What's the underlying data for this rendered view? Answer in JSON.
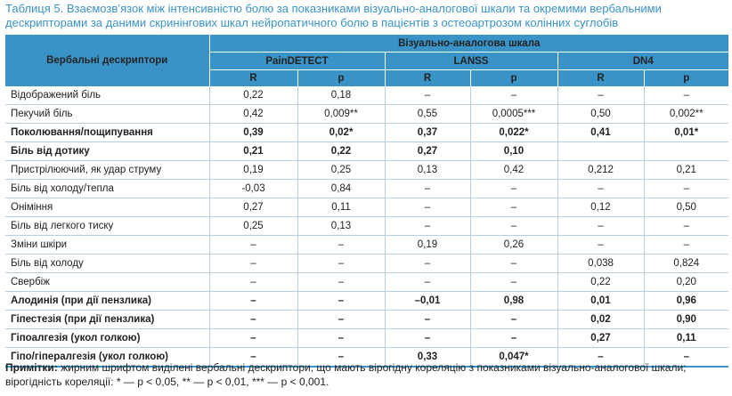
{
  "caption": {
    "line1": "Таблиця 5. Взаємозв’язок між інтенсивністю болю за показниками візуально-аналогової шкали та окремими вербальними",
    "line2": "дескрипторами за даними скринінгових шкал нейропатичного болю в пацієнтів з остеоартрозом колінних суглобів"
  },
  "table": {
    "descriptor_header": "Вербальні дескриптори",
    "scale_header": "Візуально-аналогова шкала",
    "groups": [
      "PainDETECT",
      "LANSS",
      "DN4"
    ],
    "subheaders": [
      "R",
      "p",
      "R",
      "p",
      "R",
      "p"
    ],
    "rows": [
      {
        "label": "Відображений біль",
        "bold": false,
        "cells": [
          "0,22",
          "0,18",
          "–",
          "–",
          "–",
          "–"
        ]
      },
      {
        "label": "Пекучий біль",
        "bold": false,
        "cells": [
          "0,42",
          "0,009**",
          "0,55",
          "0,0005***",
          "0,50",
          "0,002**"
        ]
      },
      {
        "label": "Поколювання/пощипування",
        "bold": true,
        "cells": [
          "0,39",
          "0,02*",
          "0,37",
          "0,022*",
          "0,41",
          "0,01*"
        ]
      },
      {
        "label": "Біль від дотику",
        "bold": true,
        "cells": [
          "0,21",
          "0,22",
          "0,27",
          "0,10",
          "",
          ""
        ]
      },
      {
        "label": "Пристрілюючий, як удар струму",
        "bold": false,
        "cells": [
          "0,19",
          "0,25",
          "0,13",
          "0,42",
          "0,212",
          "0,21"
        ]
      },
      {
        "label": "Біль від холоду/тепла",
        "bold": false,
        "cells": [
          "-0,03",
          "0,84",
          "–",
          "–",
          "–",
          "–"
        ]
      },
      {
        "label": "Оніміння",
        "bold": false,
        "cells": [
          "0,27",
          "0,11",
          "–",
          "–",
          "0,12",
          "0,50"
        ]
      },
      {
        "label": "Біль від легкого тиску",
        "bold": false,
        "cells": [
          "0,25",
          "0,13",
          "–",
          "–",
          "–",
          "–"
        ]
      },
      {
        "label": "Зміни шкіри",
        "bold": false,
        "cells": [
          "–",
          "–",
          "0,19",
          "0,26",
          "–",
          "–"
        ]
      },
      {
        "label": "Біль від холоду",
        "bold": false,
        "cells": [
          "–",
          "–",
          "–",
          "–",
          "0,038",
          "0,824"
        ]
      },
      {
        "label": "Свербіж",
        "bold": false,
        "cells": [
          "–",
          "–",
          "–",
          "–",
          "0,22",
          "0,20"
        ]
      },
      {
        "label": "Алодинія (при дії пензлика)",
        "bold": true,
        "cells": [
          "–",
          "–",
          "–0,01",
          "0,98",
          "0,01",
          "0,96"
        ]
      },
      {
        "label": "Гіпестезія (при дії пензлика)",
        "bold": true,
        "cells": [
          "–",
          "–",
          "–",
          "–",
          "0,02",
          "0,90"
        ]
      },
      {
        "label": "Гіпоалгезія (укол голкою)",
        "bold": true,
        "cells": [
          "–",
          "–",
          "–",
          "–",
          "0,27",
          "0,11"
        ]
      },
      {
        "label": "Гіпо/гіпералгезія (укол голкою)",
        "bold": true,
        "cells": [
          "–",
          "–",
          "0,33",
          "0,047*",
          "–",
          "–"
        ]
      }
    ]
  },
  "notes": {
    "label": "Примітки:",
    "text": "жирним шрифтом виділені вербальні дескриптори, що мають вірогідну кореляцію з показниками візуально-аналогової шкали; вірогідність кореляції: * — p < 0,05, ** — p < 0,01, *** — p < 0,001."
  },
  "colors": {
    "accent": "#3a93c7",
    "rule": "#b9cfe0",
    "text": "#222222"
  }
}
